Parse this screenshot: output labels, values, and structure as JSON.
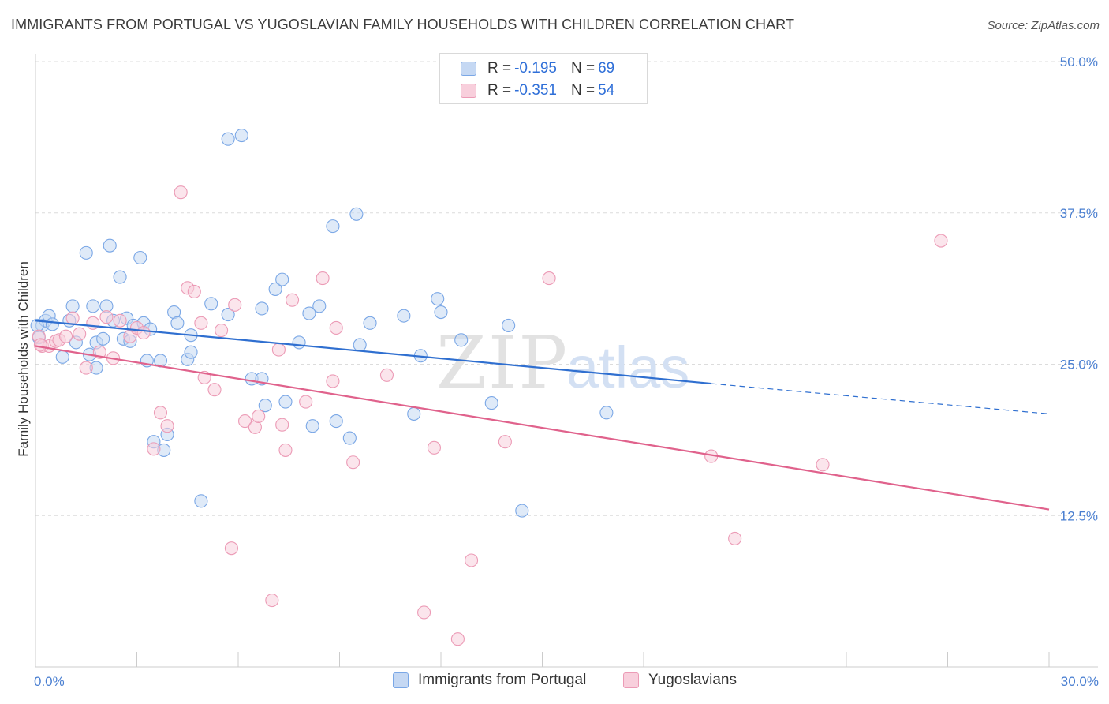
{
  "chart_data": {
    "type": "scatter",
    "title": "IMMIGRANTS FROM PORTUGAL VS YUGOSLAVIAN FAMILY HOUSEHOLDS WITH CHILDREN CORRELATION CHART",
    "source": "Source: ZipAtlas.com",
    "xlabel": "",
    "ylabel": "Family Households with Children",
    "xlim": [
      0,
      30
    ],
    "ylim": [
      0,
      50
    ],
    "x_tick_labels": [
      "0.0%",
      "30.0%"
    ],
    "y_ticks": [
      12.5,
      25.0,
      37.5,
      50.0
    ],
    "y_tick_labels": [
      "12.5%",
      "25.0%",
      "37.5%",
      "50.0%"
    ],
    "grid": true,
    "watermark": "ZIPatlas",
    "legend": {
      "placement": "top-center",
      "rows": [
        {
          "r_label": "R =",
          "r_value": "-0.195",
          "n_label": "N =",
          "n_value": "69"
        },
        {
          "r_label": "R =",
          "r_value": "-0.351",
          "n_label": "N =",
          "n_value": "54"
        }
      ]
    },
    "series": [
      {
        "name": "Immigrants from Portugal",
        "color": "#7aa7e6",
        "fill": "#c5d8f3",
        "trend": {
          "x0": 0,
          "y0": 28.6,
          "x1": 20,
          "y1": 23.4,
          "dashed_to_x": 30,
          "dashed_to_y": 20.9,
          "color": "#2f6fd0"
        },
        "points": [
          [
            0.1,
            27.2
          ],
          [
            0.2,
            28.2
          ],
          [
            0.3,
            28.6
          ],
          [
            0.4,
            29.0
          ],
          [
            0.5,
            28.3
          ],
          [
            0.8,
            25.6
          ],
          [
            1.0,
            28.6
          ],
          [
            1.1,
            29.8
          ],
          [
            1.2,
            26.8
          ],
          [
            1.5,
            34.2
          ],
          [
            1.6,
            25.8
          ],
          [
            1.7,
            29.8
          ],
          [
            1.8,
            26.8
          ],
          [
            1.8,
            24.7
          ],
          [
            2.0,
            27.1
          ],
          [
            2.1,
            29.8
          ],
          [
            2.2,
            34.8
          ],
          [
            2.3,
            28.6
          ],
          [
            2.5,
            32.2
          ],
          [
            2.6,
            27.1
          ],
          [
            2.7,
            28.8
          ],
          [
            2.8,
            26.9
          ],
          [
            2.9,
            28.2
          ],
          [
            3.1,
            33.8
          ],
          [
            3.2,
            28.4
          ],
          [
            3.3,
            25.3
          ],
          [
            3.4,
            27.9
          ],
          [
            3.5,
            18.6
          ],
          [
            3.7,
            25.3
          ],
          [
            3.8,
            17.9
          ],
          [
            3.9,
            19.2
          ],
          [
            4.1,
            29.3
          ],
          [
            4.2,
            28.4
          ],
          [
            4.5,
            25.4
          ],
          [
            4.6,
            27.4
          ],
          [
            4.6,
            26.0
          ],
          [
            4.9,
            13.7
          ],
          [
            5.2,
            30.0
          ],
          [
            5.7,
            43.6
          ],
          [
            5.7,
            29.1
          ],
          [
            6.1,
            43.9
          ],
          [
            6.4,
            23.8
          ],
          [
            6.7,
            29.6
          ],
          [
            6.7,
            23.8
          ],
          [
            6.8,
            21.6
          ],
          [
            7.1,
            31.2
          ],
          [
            7.3,
            32.0
          ],
          [
            7.4,
            21.9
          ],
          [
            7.8,
            26.8
          ],
          [
            8.1,
            29.2
          ],
          [
            8.2,
            19.9
          ],
          [
            8.4,
            29.8
          ],
          [
            8.8,
            36.4
          ],
          [
            8.9,
            20.3
          ],
          [
            9.3,
            18.9
          ],
          [
            9.5,
            37.4
          ],
          [
            9.6,
            26.6
          ],
          [
            9.9,
            28.4
          ],
          [
            10.9,
            29.0
          ],
          [
            11.2,
            20.9
          ],
          [
            11.4,
            25.7
          ],
          [
            11.9,
            30.4
          ],
          [
            12.0,
            29.3
          ],
          [
            12.6,
            27.0
          ],
          [
            13.5,
            21.8
          ],
          [
            14.0,
            28.2
          ],
          [
            14.4,
            12.9
          ],
          [
            16.9,
            21.0
          ],
          [
            0.05,
            28.2
          ]
        ]
      },
      {
        "name": "Yugoslavians",
        "color": "#ec9bb6",
        "fill": "#f8cfdc",
        "trend": {
          "x0": 0,
          "y0": 26.5,
          "x1": 30,
          "y1": 13.0,
          "color": "#e0628c"
        },
        "points": [
          [
            0.1,
            27.3
          ],
          [
            0.2,
            26.5
          ],
          [
            0.4,
            26.5
          ],
          [
            0.6,
            26.9
          ],
          [
            0.7,
            27.0
          ],
          [
            0.9,
            27.3
          ],
          [
            1.1,
            28.8
          ],
          [
            1.3,
            27.5
          ],
          [
            1.5,
            24.7
          ],
          [
            1.7,
            28.4
          ],
          [
            1.9,
            26.0
          ],
          [
            2.1,
            28.9
          ],
          [
            2.3,
            25.5
          ],
          [
            2.5,
            28.6
          ],
          [
            2.8,
            27.3
          ],
          [
            3.0,
            28.0
          ],
          [
            3.2,
            27.6
          ],
          [
            3.5,
            18.0
          ],
          [
            3.7,
            21.0
          ],
          [
            3.9,
            19.9
          ],
          [
            4.3,
            39.2
          ],
          [
            4.5,
            31.3
          ],
          [
            4.7,
            31.0
          ],
          [
            4.9,
            28.4
          ],
          [
            5.0,
            23.9
          ],
          [
            5.3,
            22.9
          ],
          [
            5.5,
            27.8
          ],
          [
            5.8,
            9.8
          ],
          [
            5.9,
            29.9
          ],
          [
            6.2,
            20.3
          ],
          [
            6.5,
            19.8
          ],
          [
            6.6,
            20.7
          ],
          [
            7.0,
            5.5
          ],
          [
            7.2,
            26.2
          ],
          [
            7.3,
            20.0
          ],
          [
            7.4,
            17.9
          ],
          [
            7.6,
            30.3
          ],
          [
            8.0,
            21.9
          ],
          [
            8.5,
            32.1
          ],
          [
            8.8,
            23.6
          ],
          [
            8.9,
            28.0
          ],
          [
            9.4,
            16.9
          ],
          [
            10.4,
            24.1
          ],
          [
            11.5,
            4.5
          ],
          [
            11.8,
            18.1
          ],
          [
            12.5,
            2.3
          ],
          [
            12.9,
            8.8
          ],
          [
            13.9,
            18.6
          ],
          [
            15.2,
            32.1
          ],
          [
            20.0,
            17.4
          ],
          [
            20.7,
            10.6
          ],
          [
            23.3,
            16.7
          ],
          [
            26.8,
            35.2
          ],
          [
            0.15,
            26.6
          ]
        ]
      }
    ]
  }
}
